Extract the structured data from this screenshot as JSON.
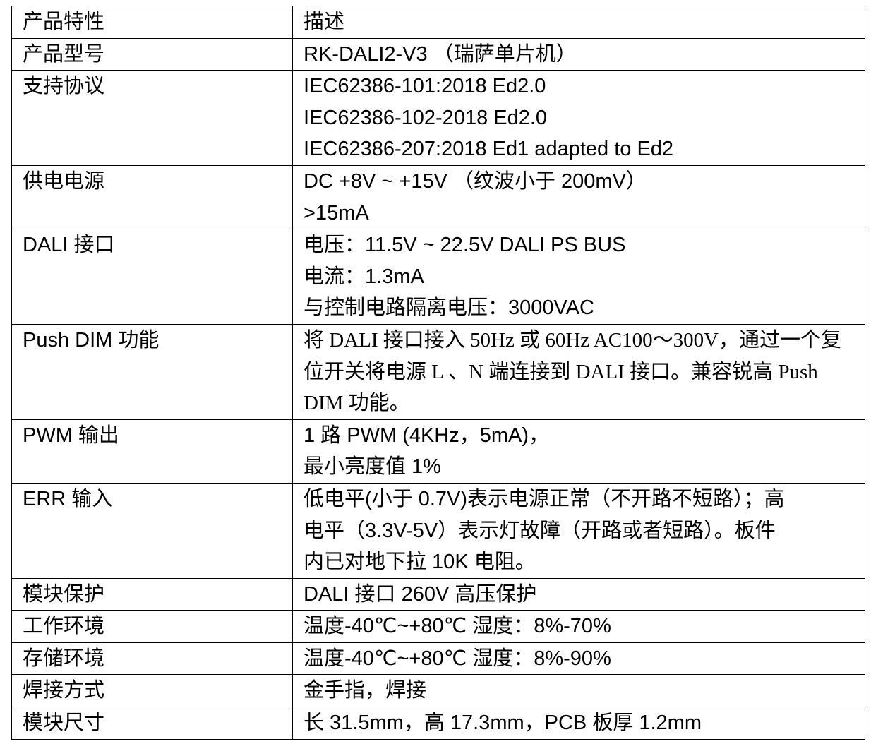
{
  "table": {
    "header": {
      "key": "产品特性",
      "value": "描述"
    },
    "rows": [
      {
        "key": "产品型号",
        "lines": [
          "RK-DALI2-V3 （瑞萨单片机）"
        ]
      },
      {
        "key": "支持协议",
        "lines": [
          "IEC62386-101:2018 Ed2.0",
          "IEC62386-102-2018 Ed2.0",
          "IEC62386-207:2018 Ed1 adapted to Ed2"
        ]
      },
      {
        "key": "供电电源",
        "lines": [
          "DC +8V ~ +15V （纹波小于 200mV）",
          ">15mA"
        ]
      },
      {
        "key": "DALI 接口",
        "lines": [
          "电压：11.5V ~ 22.5V DALI PS BUS",
          "电流：1.3mA",
          "与控制电路隔离电压：3000VAC"
        ]
      },
      {
        "key": "Push DIM 功能",
        "serif": true,
        "lines": [
          "将 DALI 接口接入 50Hz 或 60Hz AC100～300V，通过一个复",
          "位开关将电源 L 、N 端连接到 DALI 接口。兼容锐高 Push",
          "DIM 功能。"
        ]
      },
      {
        "key": "PWM 输出",
        "lines": [
          "1 路 PWM (4KHz，5mA)，",
          "最小亮度值 1%"
        ]
      },
      {
        "key": "ERR 输入",
        "lines": [
          "低电平(小于 0.7V)表示电源正常（不开路不短路）；高",
          "电平（3.3V-5V）表示灯故障（开路或者短路）。板件",
          "内已对地下拉 10K 电阻。"
        ]
      },
      {
        "key": "模块保护",
        "lines": [
          "DALI 接口 260V 高压保护"
        ]
      },
      {
        "key": "工作环境",
        "lines": [
          "温度-40℃~+80℃ 湿度：8%-70%"
        ]
      },
      {
        "key": "存储环境",
        "lines": [
          "温度-40℃~+80℃ 湿度：8%-90%"
        ]
      },
      {
        "key": "焊接方式",
        "lines": [
          "金手指，焊接"
        ]
      },
      {
        "key": "模块尺寸",
        "lines": [
          "长 31.5mm，高 17.3mm，PCB 板厚 1.2mm"
        ]
      }
    ]
  }
}
